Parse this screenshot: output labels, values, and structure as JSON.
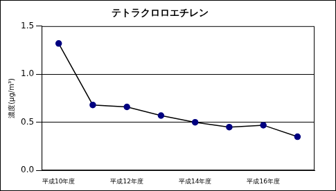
{
  "chart_data": {
    "type": "line",
    "title": "テトラクロロエチレン",
    "y_label": "濃度(μg/m³)",
    "categories": [
      "平成10年度",
      null,
      "平成12年度",
      null,
      "平成14年度",
      null,
      "平成16年度",
      null
    ],
    "series": [
      {
        "name": "テトラクロロエチレン",
        "color": "#000080",
        "marker": "circle",
        "line_style": "solid",
        "values": [
          1.32,
          0.68,
          0.66,
          0.57,
          0.5,
          0.45,
          0.47,
          0.35
        ]
      }
    ],
    "ylim": [
      0,
      1.5
    ],
    "yticks": [
      {
        "value": 0,
        "label": "0.0"
      },
      0.5,
      {
        "value": 1,
        "label": "1.0"
      },
      1.5
    ],
    "grid": true
  }
}
